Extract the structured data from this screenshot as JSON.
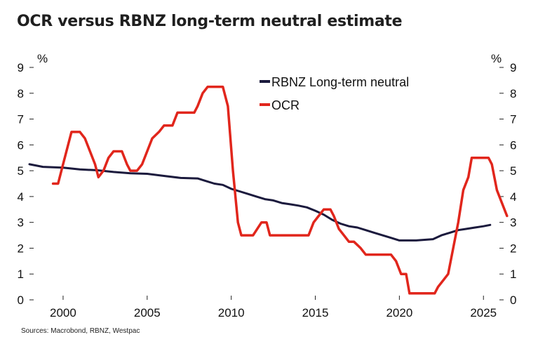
{
  "title": "OCR versus RBNZ long-term neutral estimate",
  "source": "Sources: Macrobond, RBNZ, Westpac",
  "chart_data": {
    "type": "line",
    "title": "OCR versus RBNZ long-term neutral estimate",
    "ylabel_left": "%",
    "ylabel_right": "%",
    "ylim": [
      0,
      9
    ],
    "xlim": [
      1998,
      2026.2
    ],
    "y_ticks": [
      0,
      1,
      2,
      3,
      4,
      5,
      6,
      7,
      8,
      9
    ],
    "x_ticks": [
      2000,
      2005,
      2010,
      2015,
      2020,
      2025
    ],
    "legend_position": "top-center",
    "series": [
      {
        "name": "RBNZ Long-term neutral",
        "color": "#1b1a3d",
        "points": [
          [
            1998.0,
            5.25
          ],
          [
            1998.8,
            5.15
          ],
          [
            2000.0,
            5.12
          ],
          [
            2001.0,
            5.05
          ],
          [
            2002.0,
            5.02
          ],
          [
            2003.0,
            4.95
          ],
          [
            2004.0,
            4.9
          ],
          [
            2005.0,
            4.88
          ],
          [
            2006.0,
            4.8
          ],
          [
            2007.0,
            4.72
          ],
          [
            2008.0,
            4.7
          ],
          [
            2008.5,
            4.6
          ],
          [
            2009.0,
            4.5
          ],
          [
            2009.5,
            4.45
          ],
          [
            2010.0,
            4.3
          ],
          [
            2010.5,
            4.2
          ],
          [
            2011.0,
            4.1
          ],
          [
            2011.5,
            4.0
          ],
          [
            2012.0,
            3.9
          ],
          [
            2012.5,
            3.85
          ],
          [
            2013.0,
            3.75
          ],
          [
            2013.5,
            3.7
          ],
          [
            2014.0,
            3.65
          ],
          [
            2014.5,
            3.58
          ],
          [
            2015.0,
            3.45
          ],
          [
            2015.5,
            3.3
          ],
          [
            2016.0,
            3.1
          ],
          [
            2016.5,
            2.95
          ],
          [
            2017.0,
            2.85
          ],
          [
            2017.5,
            2.8
          ],
          [
            2018.0,
            2.7
          ],
          [
            2018.5,
            2.6
          ],
          [
            2019.0,
            2.5
          ],
          [
            2019.5,
            2.4
          ],
          [
            2020.0,
            2.3
          ],
          [
            2021.0,
            2.3
          ],
          [
            2022.0,
            2.35
          ],
          [
            2022.5,
            2.5
          ],
          [
            2023.0,
            2.6
          ],
          [
            2023.5,
            2.7
          ],
          [
            2024.0,
            2.75
          ],
          [
            2024.5,
            2.8
          ],
          [
            2025.0,
            2.85
          ],
          [
            2025.4,
            2.9
          ]
        ]
      },
      {
        "name": "OCR",
        "color": "#e1261c",
        "points": [
          [
            1999.4,
            4.5
          ],
          [
            1999.7,
            4.5
          ],
          [
            2000.0,
            5.25
          ],
          [
            2000.5,
            6.5
          ],
          [
            2001.0,
            6.5
          ],
          [
            2001.3,
            6.25
          ],
          [
            2001.6,
            5.75
          ],
          [
            2001.9,
            5.25
          ],
          [
            2002.1,
            4.75
          ],
          [
            2002.4,
            5.0
          ],
          [
            2002.7,
            5.5
          ],
          [
            2003.0,
            5.75
          ],
          [
            2003.5,
            5.75
          ],
          [
            2003.8,
            5.25
          ],
          [
            2004.0,
            5.0
          ],
          [
            2004.4,
            5.0
          ],
          [
            2004.7,
            5.25
          ],
          [
            2005.0,
            5.75
          ],
          [
            2005.3,
            6.25
          ],
          [
            2005.7,
            6.5
          ],
          [
            2006.0,
            6.75
          ],
          [
            2006.5,
            6.75
          ],
          [
            2006.8,
            7.25
          ],
          [
            2007.3,
            7.25
          ],
          [
            2007.8,
            7.25
          ],
          [
            2008.0,
            7.5
          ],
          [
            2008.3,
            8.0
          ],
          [
            2008.6,
            8.25
          ],
          [
            2009.5,
            8.25
          ],
          [
            2009.8,
            7.5
          ],
          [
            2010.1,
            5.0
          ],
          [
            2010.4,
            3.0
          ],
          [
            2010.6,
            2.5
          ],
          [
            2011.0,
            2.5
          ],
          [
            2011.3,
            2.5
          ],
          [
            2011.8,
            3.0
          ],
          [
            2012.1,
            3.0
          ],
          [
            2012.3,
            2.5
          ],
          [
            2013.5,
            2.5
          ],
          [
            2014.6,
            2.5
          ],
          [
            2014.9,
            3.0
          ],
          [
            2015.2,
            3.25
          ],
          [
            2015.5,
            3.5
          ],
          [
            2015.9,
            3.5
          ],
          [
            2016.1,
            3.25
          ],
          [
            2016.4,
            2.75
          ],
          [
            2016.7,
            2.5
          ],
          [
            2017.0,
            2.25
          ],
          [
            2017.3,
            2.25
          ],
          [
            2017.7,
            2.0
          ],
          [
            2018.0,
            1.75
          ],
          [
            2019.0,
            1.75
          ],
          [
            2019.5,
            1.75
          ],
          [
            2019.8,
            1.5
          ],
          [
            2020.1,
            1.0
          ],
          [
            2020.4,
            1.0
          ],
          [
            2020.6,
            0.25
          ],
          [
            2021.0,
            0.25
          ],
          [
            2021.5,
            0.25
          ],
          [
            2022.1,
            0.25
          ],
          [
            2022.3,
            0.5
          ],
          [
            2022.6,
            0.75
          ],
          [
            2022.9,
            1.0
          ],
          [
            2023.2,
            2.0
          ],
          [
            2023.5,
            3.0
          ],
          [
            2023.8,
            4.25
          ],
          [
            2024.1,
            4.75
          ],
          [
            2024.3,
            5.5
          ],
          [
            2024.7,
            5.5
          ],
          [
            2025.0,
            5.5
          ],
          [
            2025.3,
            5.5
          ],
          [
            2025.5,
            5.25
          ],
          [
            2025.8,
            4.25
          ],
          [
            2026.1,
            3.75
          ],
          [
            2026.4,
            3.25
          ]
        ]
      }
    ]
  }
}
